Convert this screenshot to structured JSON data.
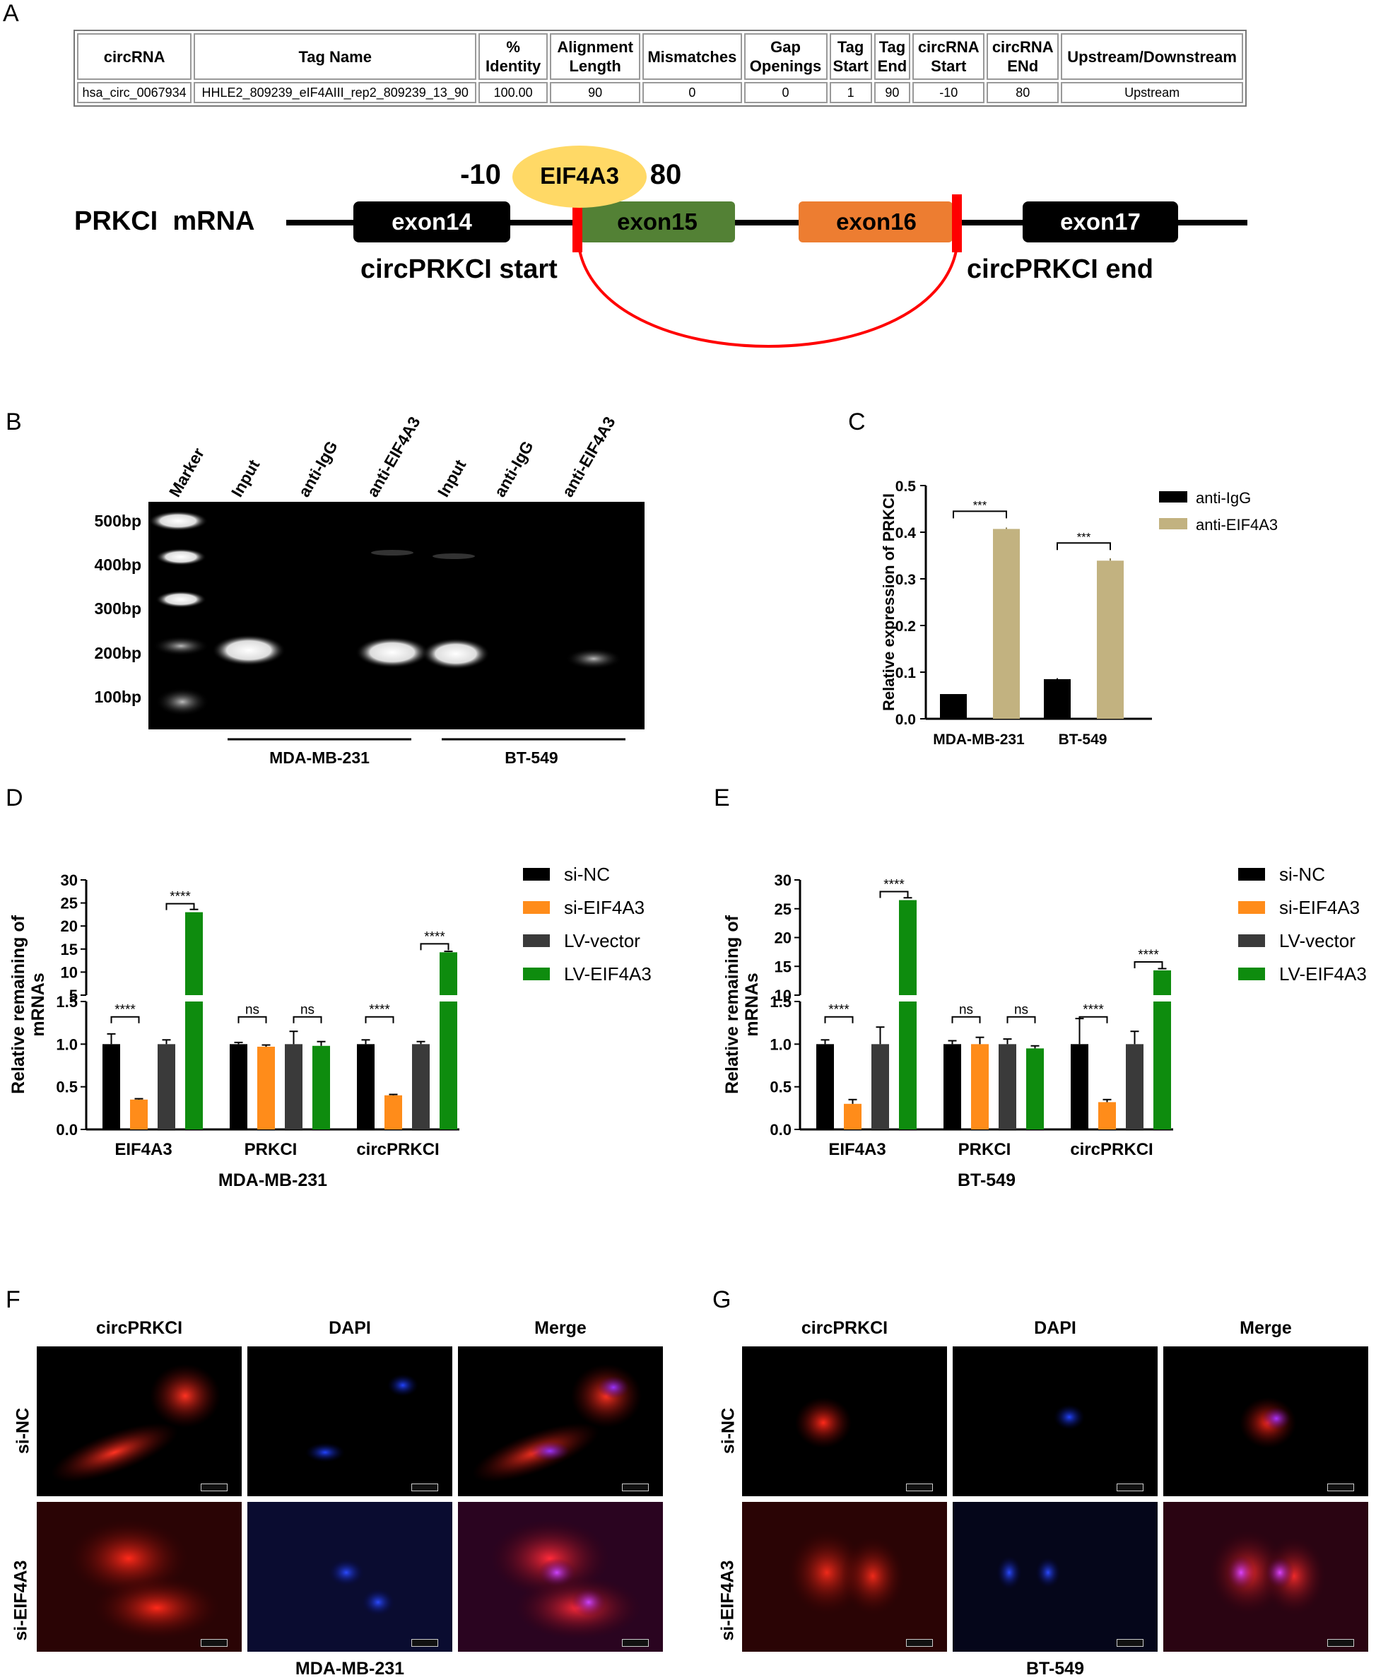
{
  "panels": {
    "a": "A",
    "b": "B",
    "c": "C",
    "d": "D",
    "e": "E",
    "f": "F",
    "g": "G"
  },
  "table": {
    "headers": [
      "circRNA",
      "Tag Name",
      "% Identity",
      "Alignment Length",
      "Mismatches",
      "Gap Openings",
      "Tag Start",
      "Tag End",
      "circRNA Start",
      "circRNA ENd",
      "Upstream/Downstream"
    ],
    "row": [
      "hsa_circ_0067934",
      "HHLE2_809239_eIF4AIII_rep2_809239_13_90",
      "100.00",
      "90",
      "0",
      "0",
      "1",
      "90",
      "-10",
      "80",
      "Upstream"
    ]
  },
  "schematic": {
    "mrna_label": "PRKCI  mRNA",
    "exons": [
      "exon14",
      "exon15",
      "exon16",
      "exon17"
    ],
    "binding_protein": "EIF4A3",
    "bind_start": "-10",
    "bind_end": "80",
    "start_label": "circPRKCI start",
    "end_label": "circPRKCI end",
    "colors": {
      "exon14": "#000000",
      "exon15": "#538135",
      "exon16": "#ed7d31",
      "exon17": "#000000",
      "junction": "#ff0000",
      "protein": "#ffd966"
    }
  },
  "gel": {
    "lanes": [
      "Marker",
      "Input",
      "anti-IgG",
      "anti-EIF4A3",
      "Input",
      "anti-IgG",
      "anti-EIF4A3"
    ],
    "ladder": [
      "500bp",
      "400bp",
      "300bp",
      "200bp",
      "100bp"
    ],
    "groups": [
      "MDA-MB-231",
      "BT-549"
    ]
  },
  "chart_data": [
    {
      "id": "C",
      "type": "bar",
      "ylabel": "Relative expression of PRKCI",
      "categories": [
        "MDA-MB-231",
        "BT-549"
      ],
      "ylim": [
        0,
        0.5
      ],
      "yticks": [
        "0.0",
        "0.1",
        "0.2",
        "0.3",
        "0.4",
        "0.5"
      ],
      "series": [
        {
          "name": "anti-IgG",
          "color": "#000000",
          "values": [
            0.053,
            0.085
          ],
          "errors": [
            0.0,
            0.002
          ]
        },
        {
          "name": "anti-EIF4A3",
          "color": "#c2b280",
          "values": [
            0.407,
            0.339
          ],
          "errors": [
            0.003,
            0.005
          ]
        }
      ],
      "significance": [
        "***",
        "***"
      ],
      "legend": "right"
    },
    {
      "id": "D",
      "type": "bar",
      "ylabel": "Relative remaining of mRNAs",
      "xlabel": "MDA-MB-231",
      "categories": [
        "EIF4A3",
        "PRKCI",
        "circPRKCI"
      ],
      "axis_break": {
        "lower_ylim": [
          0,
          1.5
        ],
        "upper_ylim": [
          5,
          30
        ]
      },
      "yticks_lower": [
        "0.0",
        "0.5",
        "1.0",
        "1.5"
      ],
      "yticks_upper": [
        "5",
        "10",
        "15",
        "20",
        "25",
        "30"
      ],
      "series": [
        {
          "name": "si-NC",
          "color": "#000000",
          "values": [
            1.0,
            1.0,
            1.0
          ],
          "errors": [
            0.12,
            0.02,
            0.05
          ]
        },
        {
          "name": "si-EIF4A3",
          "color": "#ff8c1a",
          "values": [
            0.35,
            0.97,
            0.4
          ],
          "errors": [
            0.01,
            0.02,
            0.01
          ]
        },
        {
          "name": "LV-vector",
          "color": "#3a3a3a",
          "values": [
            1.0,
            1.0,
            1.0
          ],
          "errors": [
            0.05,
            0.15,
            0.03
          ]
        },
        {
          "name": "LV-EIF4A3",
          "color": "#0e8c0e",
          "values": [
            23.0,
            0.98,
            14.3
          ],
          "errors": [
            0.6,
            0.05,
            0.2
          ]
        }
      ],
      "significance": [
        [
          "****",
          "****"
        ],
        [
          "ns",
          "ns"
        ],
        [
          "****",
          "****"
        ]
      ],
      "legend": "right"
    },
    {
      "id": "E",
      "type": "bar",
      "ylabel": "Relative remaining of mRNAs",
      "xlabel": "BT-549",
      "categories": [
        "EIF4A3",
        "PRKCI",
        "circPRKCI"
      ],
      "axis_break": {
        "lower_ylim": [
          0,
          1.5
        ],
        "upper_ylim": [
          10,
          30
        ]
      },
      "yticks_lower": [
        "0.0",
        "0.5",
        "1.0",
        "1.5"
      ],
      "yticks_upper": [
        "10",
        "15",
        "20",
        "25",
        "30"
      ],
      "series": [
        {
          "name": "si-NC",
          "color": "#000000",
          "values": [
            1.0,
            1.0,
            1.0
          ],
          "errors": [
            0.05,
            0.04,
            0.3
          ]
        },
        {
          "name": "si-EIF4A3",
          "color": "#ff8c1a",
          "values": [
            0.3,
            1.0,
            0.32
          ],
          "errors": [
            0.05,
            0.08,
            0.03
          ]
        },
        {
          "name": "LV-vector",
          "color": "#3a3a3a",
          "values": [
            1.0,
            1.0,
            1.0
          ],
          "errors": [
            0.2,
            0.06,
            0.15
          ]
        },
        {
          "name": "LV-EIF4A3",
          "color": "#0e8c0e",
          "values": [
            26.5,
            0.95,
            14.3
          ],
          "errors": [
            0.4,
            0.03,
            0.3
          ]
        }
      ],
      "significance": [
        [
          "****",
          "****"
        ],
        [
          "ns",
          "ns"
        ],
        [
          "****",
          "****"
        ]
      ],
      "legend": "right"
    }
  ],
  "fish": {
    "columns": [
      "circPRKCI",
      "DAPI",
      "Merge"
    ],
    "rows": [
      "si-NC",
      "si-EIF4A3"
    ],
    "left_cell": "MDA-MB-231",
    "right_cell": "BT-549"
  }
}
